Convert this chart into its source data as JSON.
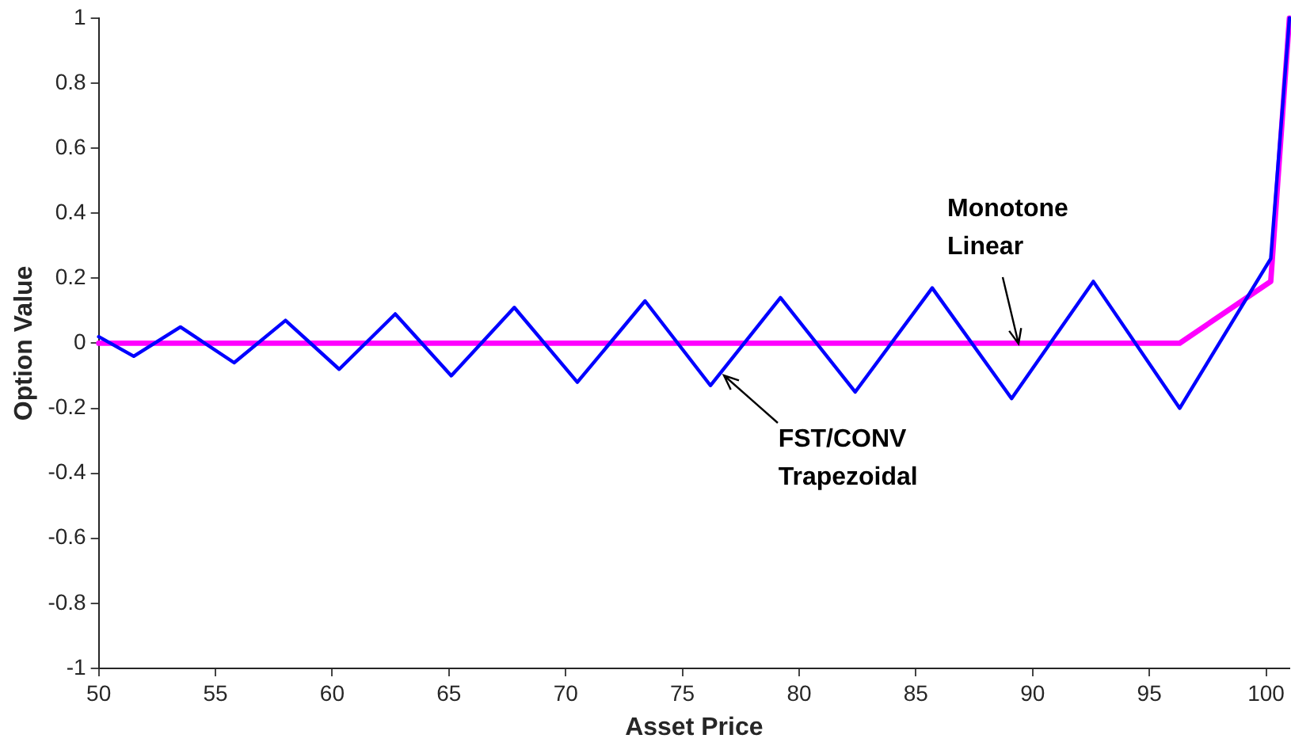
{
  "chart_data": {
    "type": "line",
    "xlabel": "Asset Price",
    "ylabel": "Option Value",
    "xlim": [
      50,
      101
    ],
    "ylim": [
      -1,
      1
    ],
    "xticks": [
      50,
      55,
      60,
      65,
      70,
      75,
      80,
      85,
      90,
      95,
      100
    ],
    "yticks": [
      -1,
      -0.8,
      -0.6,
      -0.4,
      -0.2,
      0,
      0.2,
      0.4,
      0.6,
      0.8,
      1
    ],
    "grid": false,
    "legend": false,
    "marker": "none",
    "line_style": "solid",
    "series": [
      {
        "color": "#ff00ff",
        "x": [
          50,
          96.3,
          100.2,
          101
        ],
        "values": [
          0,
          0,
          0.19,
          1
        ]
      },
      {
        "color": "#0000ff",
        "x": [
          50,
          51.5,
          53.5,
          55.8,
          58.0,
          60.3,
          62.7,
          65.1,
          67.8,
          70.5,
          73.4,
          76.2,
          79.2,
          82.4,
          85.7,
          89.1,
          92.6,
          96.3,
          100.2,
          101
        ],
        "values": [
          0.02,
          -0.04,
          0.05,
          -0.06,
          0.07,
          -0.08,
          0.09,
          -0.1,
          0.11,
          -0.12,
          0.13,
          -0.13,
          0.14,
          -0.15,
          0.17,
          -0.17,
          0.19,
          -0.2,
          0.26,
          1
        ]
      }
    ],
    "annotations": [
      {
        "text": "Monotone Linear",
        "x": 89.4,
        "y": 0
      },
      {
        "text": "FST/CONV Trapezoidal",
        "x": 76.8,
        "y": -0.1
      }
    ]
  }
}
